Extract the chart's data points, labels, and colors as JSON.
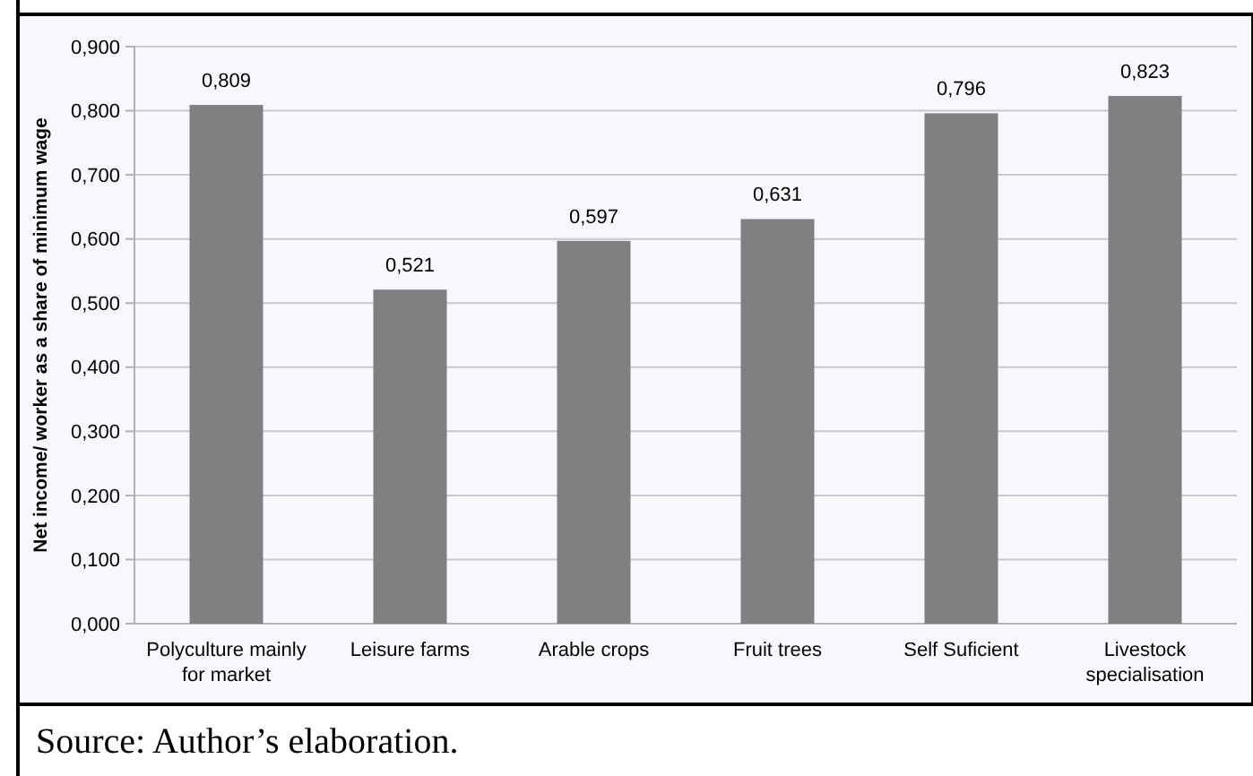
{
  "chart_data": {
    "type": "bar",
    "ylabel": "Net income/ worker as a share of minimum wage",
    "categories": [
      "Polyculture mainly for market",
      "Leisure farms",
      "Arable crops",
      "Fruit trees",
      "Self Suficient",
      "Livestock specialisation"
    ],
    "values": [
      0.809,
      0.521,
      0.597,
      0.631,
      0.796,
      0.823
    ],
    "value_labels": [
      "0,809",
      "0,521",
      "0,597",
      "0,631",
      "0,796",
      "0,823"
    ],
    "color": "#808083",
    "ylim": [
      0,
      0.9
    ],
    "yticks": [
      {
        "value": 0,
        "label": "0,000"
      },
      {
        "value": 0.1,
        "label": "0,100"
      },
      {
        "value": 0.2,
        "label": "0,200"
      },
      {
        "value": 0.3,
        "label": "0,300"
      },
      {
        "value": 0.4,
        "label": "0,400"
      },
      {
        "value": 0.5,
        "label": "0,500"
      },
      {
        "value": 0.6,
        "label": "0,600"
      },
      {
        "value": 0.7,
        "label": "0,700"
      },
      {
        "value": 0.8,
        "label": "0,800"
      },
      {
        "value": 0.9,
        "label": "0,900"
      }
    ],
    "grid": "y",
    "annotations": [
      "Source: Author’s elaboration."
    ]
  }
}
